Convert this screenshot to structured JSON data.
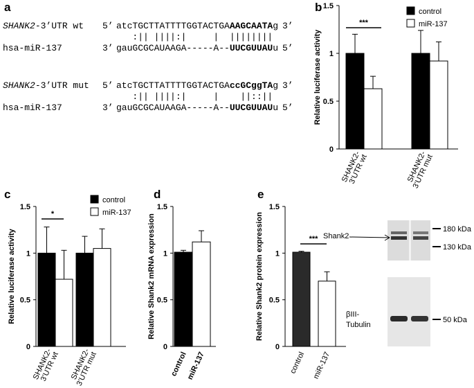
{
  "alignment": {
    "panel": "a",
    "rows": [
      {
        "gene": "SHANK2",
        "label": "-3’UTR wt",
        "end5": "5’",
        "seq": [
          "atcTGCTTATTTTGGTACTGA",
          "AAGCAATA",
          "g"
        ],
        "end3": "3’",
        "pairs": "   :|| ||||:|     |  ||||||||",
        "mirna": "hsa-miR-137",
        "mend3": "3’",
        "mseq": [
          "gauGCGCAUAAGA-----A--",
          "UUCGUUAU",
          "u"
        ],
        "mend5": "5’"
      },
      {
        "gene": "SHANK2",
        "label": "-3’UTR mut",
        "end5": "5’",
        "seq": [
          "atcTGCTTATTTTGGTACTGA",
          "ccGCggTA",
          "g"
        ],
        "end3": "3’",
        "pairs": "   :|| ||||:|     |    ||::||",
        "mirna": "hsa-miR-137",
        "mend3": "3’",
        "mseq": [
          "gauGCGCAUAAGA-----A--",
          "UUCGUUAU",
          "u"
        ],
        "mend5": "5’"
      }
    ]
  },
  "blot": {
    "band1": "Shank2",
    "band2_line1": "βIII-",
    "band2_line2": "Tubulin",
    "marker1": "180 kDa",
    "marker2": "130 kDa",
    "marker3": "50 kDa"
  },
  "chart_data": [
    {
      "type": "bar",
      "panel": "b",
      "y_label": "Relative luciferase activity",
      "categories": [
        "SHANK2-\n3’UTR wt",
        "SHANK2-\n3’UTR mut"
      ],
      "series": [
        {
          "name": "control",
          "color": "#000000",
          "values": [
            1.0,
            1.0
          ],
          "errors": [
            0.2,
            0.24
          ]
        },
        {
          "name": "miR-137",
          "color": "#ffffff",
          "values": [
            0.63,
            0.92
          ],
          "errors": [
            0.13,
            0.2
          ]
        }
      ],
      "ylim": [
        0,
        1.5
      ],
      "yticks": [
        0,
        0.5,
        1,
        1.5
      ],
      "annotations": [
        "***"
      ]
    },
    {
      "type": "bar",
      "panel": "c",
      "y_label": "Relative luciferase activity",
      "categories": [
        "SHANK2-\n3’UTR wt",
        "SHANK2-\n3’UTR mut"
      ],
      "series": [
        {
          "name": "control",
          "color": "#000000",
          "values": [
            1.0,
            1.0
          ],
          "errors": [
            0.28,
            0.18
          ]
        },
        {
          "name": "miR-137",
          "color": "#ffffff",
          "values": [
            0.72,
            1.05
          ],
          "errors": [
            0.31,
            0.21
          ]
        }
      ],
      "ylim": [
        0,
        1.5
      ],
      "yticks": [
        0,
        0.5,
        1,
        1.5
      ],
      "annotations": [
        "*"
      ]
    },
    {
      "type": "bar",
      "panel": "d",
      "y_label": "Relative Shank2 mRNA expression",
      "categories": [
        "control",
        "miR-137"
      ],
      "values": [
        1.01,
        1.12
      ],
      "errors": [
        0.02,
        0.12
      ],
      "colors": [
        "#000000",
        "#ffffff"
      ],
      "ylim": [
        0,
        1.5
      ],
      "yticks": [
        0,
        0.5,
        1,
        1.5
      ],
      "annotations": []
    },
    {
      "type": "bar",
      "panel": "e",
      "y_label": "Relative Shank2 protein expression",
      "categories": [
        "control",
        "miR-137"
      ],
      "values": [
        1.01,
        0.7
      ],
      "errors": [
        0.01,
        0.1
      ],
      "colors": [
        "#2a2a2a",
        "#ffffff"
      ],
      "ylim": [
        0,
        1.5
      ],
      "yticks": [
        0,
        0.5,
        1,
        1.5
      ],
      "annotations": [
        "***"
      ]
    }
  ]
}
